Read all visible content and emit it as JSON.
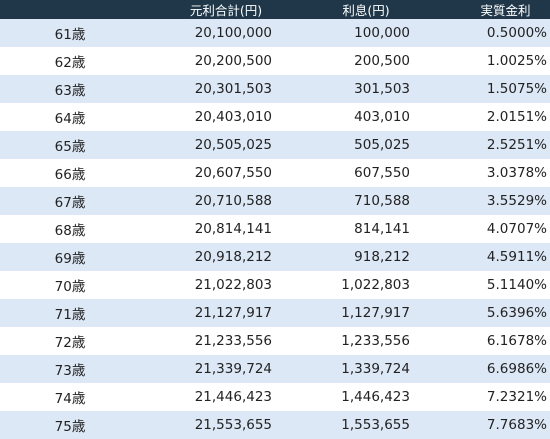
{
  "header": {
    "age": "",
    "total": "元利合計(円)",
    "interest": "利息(円)",
    "rate": "実質金利"
  },
  "rows": [
    {
      "age": "61歳",
      "total": "20,100,000",
      "interest": "100,000",
      "rate": "0.5000%"
    },
    {
      "age": "62歳",
      "total": "20,200,500",
      "interest": "200,500",
      "rate": "1.0025%"
    },
    {
      "age": "63歳",
      "total": "20,301,503",
      "interest": "301,503",
      "rate": "1.5075%"
    },
    {
      "age": "64歳",
      "total": "20,403,010",
      "interest": "403,010",
      "rate": "2.0151%"
    },
    {
      "age": "65歳",
      "total": "20,505,025",
      "interest": "505,025",
      "rate": "2.5251%"
    },
    {
      "age": "66歳",
      "total": "20,607,550",
      "interest": "607,550",
      "rate": "3.0378%"
    },
    {
      "age": "67歳",
      "total": "20,710,588",
      "interest": "710,588",
      "rate": "3.5529%"
    },
    {
      "age": "68歳",
      "total": "20,814,141",
      "interest": "814,141",
      "rate": "4.0707%"
    },
    {
      "age": "69歳",
      "total": "20,918,212",
      "interest": "918,212",
      "rate": "4.5911%"
    },
    {
      "age": "70歳",
      "total": "21,022,803",
      "interest": "1,022,803",
      "rate": "5.1140%"
    },
    {
      "age": "71歳",
      "total": "21,127,917",
      "interest": "1,127,917",
      "rate": "5.6396%"
    },
    {
      "age": "72歳",
      "total": "21,233,556",
      "interest": "1,233,556",
      "rate": "6.1678%"
    },
    {
      "age": "73歳",
      "total": "21,339,724",
      "interest": "1,339,724",
      "rate": "6.6986%"
    },
    {
      "age": "74歳",
      "total": "21,446,423",
      "interest": "1,446,423",
      "rate": "7.2321%"
    },
    {
      "age": "75歳",
      "total": "21,553,655",
      "interest": "1,553,655",
      "rate": "7.7683%"
    }
  ]
}
